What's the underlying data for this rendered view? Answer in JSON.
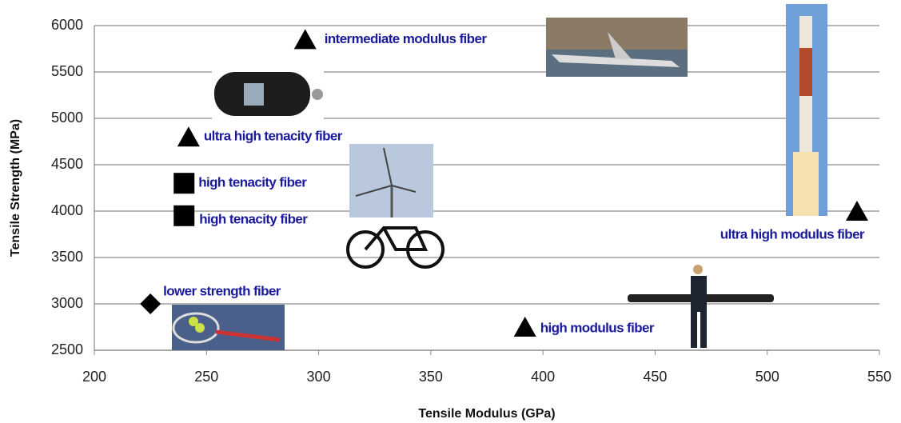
{
  "chart_data": {
    "type": "scatter",
    "xlabel": "Tensile Modulus (GPa)",
    "ylabel": "Tensile Strength (MPa)",
    "xlim": [
      200,
      550
    ],
    "xticks": [
      200,
      250,
      300,
      350,
      400,
      450,
      500,
      550
    ],
    "ylim": [
      2500,
      6000
    ],
    "yticks": [
      2500,
      3000,
      3500,
      4000,
      4500,
      5000,
      5500,
      6000
    ],
    "grid": true,
    "marker_color": "#000000",
    "label_color": "#1a1a9c",
    "points": [
      {
        "label": "intermediate modulus fiber",
        "x": 294,
        "y": 5850,
        "marker": "triangle"
      },
      {
        "label": "ultra high tenacity fiber",
        "x": 242,
        "y": 4800,
        "marker": "triangle"
      },
      {
        "label": "high tenacity fiber",
        "x": 240,
        "y": 4300,
        "marker": "square"
      },
      {
        "label": "high tenacity fiber",
        "x": 240,
        "y": 3950,
        "marker": "square"
      },
      {
        "label": "lower strength fiber",
        "x": 225,
        "y": 3000,
        "marker": "diamond"
      },
      {
        "label": "high modulus fiber",
        "x": 392,
        "y": 2750,
        "marker": "triangle"
      },
      {
        "label": "ultra high modulus fiber",
        "x": 540,
        "y": 4000,
        "marker": "triangle"
      }
    ]
  }
}
